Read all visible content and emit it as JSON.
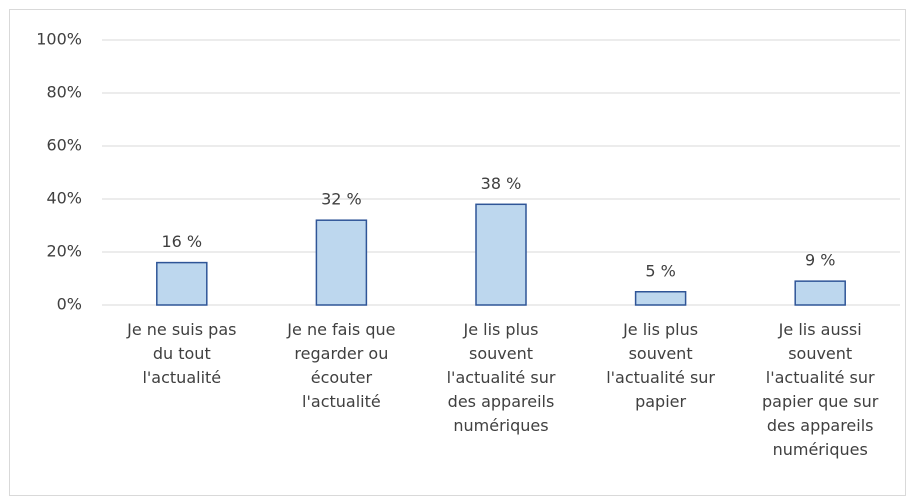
{
  "chart_data": {
    "type": "bar",
    "categories": [
      "Je  ne suis pas\ndu tout\nl'actualité",
      "Je ne fais que\nregarder ou\nécouter\nl'actualité",
      "Je lis plus\nsouvent\nl'actualité sur\ndes appareils\nnumériques",
      "Je lis plus\nsouvent\nl'actualité sur\npapier",
      "Je lis aussi\nsouvent\nl'actualité sur\npapier que sur\ndes appareils\nnumériques"
    ],
    "values": [
      16,
      32,
      38,
      5,
      9
    ],
    "value_labels": [
      "16 %",
      "32 %",
      "38 %",
      "5 %",
      "9 %"
    ],
    "color": "#bdd7ee",
    "edge_color": "#2f5597",
    "ylim": [
      0,
      100
    ],
    "yticks": [
      {
        "value": 0,
        "label": "0%"
      },
      {
        "value": 20,
        "label": "20%"
      },
      {
        "value": 40,
        "label": "40%"
      },
      {
        "value": 60,
        "label": "60%"
      },
      {
        "value": 80,
        "label": "80%"
      },
      {
        "value": 100,
        "label": "100%"
      }
    ],
    "grid": true
  }
}
